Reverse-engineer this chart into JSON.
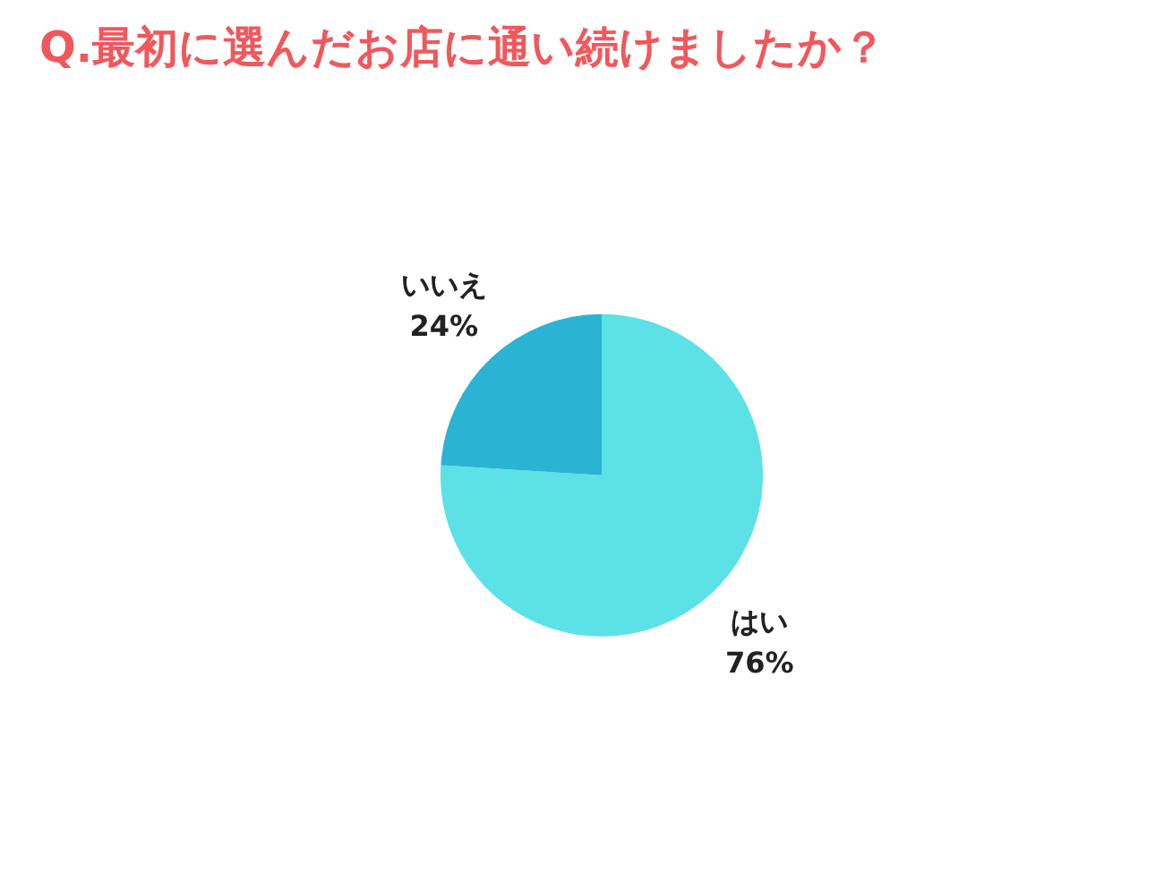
{
  "chart_data": {
    "type": "pie",
    "title": "Q.最初に選んだお店に通い続けましたか？",
    "categories": [
      "はい",
      "いいえ"
    ],
    "values": [
      76,
      24
    ],
    "colors": [
      "#5ce1e6",
      "#2bb3d4"
    ],
    "value_labels": [
      "76%",
      "24%"
    ],
    "legend": false
  }
}
